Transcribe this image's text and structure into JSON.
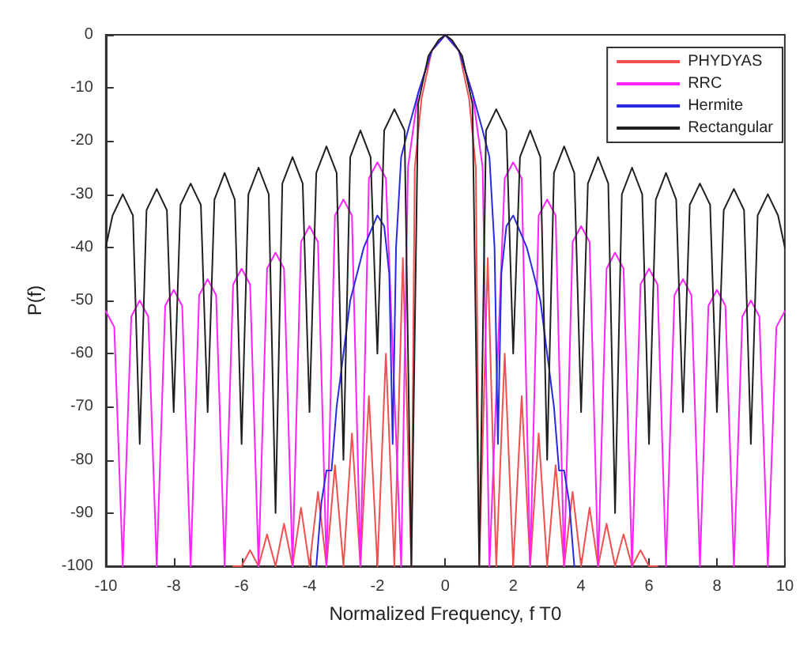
{
  "chart_data": {
    "type": "line",
    "xlabel": "Normalized Frequency, f T0",
    "ylabel": "P(f)",
    "xlim": [
      -10,
      10
    ],
    "xticks": [
      -10,
      -8,
      -6,
      -4,
      -2,
      0,
      2,
      4,
      6,
      8,
      10
    ],
    "ylim": [
      -100,
      0
    ],
    "yticks": [
      -100,
      -90,
      -80,
      -70,
      -60,
      -50,
      -40,
      -30,
      -20,
      -10,
      0
    ],
    "grid": false,
    "legend": "top right",
    "marker": "none",
    "line_style": "solid",
    "series": [
      {
        "name": "PHYDYAS",
        "color": "#f05050",
        "x": [
          -6.25,
          -6,
          -5.75,
          -5.5,
          -5.25,
          -5,
          -4.75,
          -4.5,
          -4.25,
          -4,
          -3.75,
          -3.5,
          -3.25,
          -3,
          -2.75,
          -2.5,
          -2.25,
          -2,
          -1.75,
          -1.5,
          -1.25,
          -1,
          -0.9,
          -0.7,
          -0.4,
          0,
          0.4,
          0.7,
          0.9,
          1,
          1.25,
          1.5,
          1.75,
          2,
          2.25,
          2.5,
          2.75,
          3,
          3.25,
          3.5,
          3.75,
          4,
          4.25,
          4.5,
          4.75,
          5,
          5.25,
          5.5,
          5.75,
          6,
          6.25
        ],
        "values": [
          -100,
          -100,
          -97,
          -100,
          -94,
          -100,
          -92,
          -100,
          -89,
          -100,
          -86,
          -100,
          -81,
          -100,
          -75,
          -100,
          -68,
          -100,
          -60,
          -100,
          -42,
          -100,
          -25,
          -12,
          -3,
          0,
          -3,
          -12,
          -25,
          -100,
          -42,
          -100,
          -60,
          -100,
          -68,
          -100,
          -75,
          -100,
          -81,
          -100,
          -86,
          -100,
          -89,
          -100,
          -92,
          -100,
          -94,
          -100,
          -97,
          -100,
          -100
        ]
      },
      {
        "name": "RRC",
        "color": "#ff22ff",
        "x": [
          -10,
          -9.75,
          -9.5,
          -9.25,
          -9,
          -8.75,
          -8.5,
          -8.25,
          -8,
          -7.75,
          -7.5,
          -7.25,
          -7,
          -6.75,
          -6.5,
          -6.25,
          -6,
          -5.75,
          -5.5,
          -5.25,
          -5,
          -4.75,
          -4.5,
          -4.25,
          -4,
          -3.75,
          -3.5,
          -3.25,
          -3,
          -2.75,
          -2.5,
          -2.25,
          -2,
          -1.75,
          -1.3,
          -1.1,
          -0.8,
          -0.4,
          0,
          0.4,
          0.8,
          1.1,
          1.3,
          1.75,
          2,
          2.25,
          2.5,
          2.75,
          3,
          3.25,
          3.5,
          3.75,
          4,
          4.25,
          4.5,
          4.75,
          5,
          5.25,
          5.5,
          5.75,
          6,
          6.25,
          6.5,
          6.75,
          7,
          7.25,
          7.5,
          7.75,
          8,
          8.25,
          8.5,
          8.75,
          9,
          9.25,
          9.5,
          9.75,
          10
        ],
        "values": [
          -52,
          -55,
          -100,
          -53,
          -50,
          -53,
          -100,
          -51,
          -48,
          -51,
          -100,
          -49,
          -46,
          -49,
          -100,
          -47,
          -44,
          -47,
          -100,
          -44,
          -41,
          -44,
          -100,
          -39,
          -36,
          -39,
          -100,
          -34,
          -31,
          -34,
          -100,
          -27,
          -24,
          -27,
          -100,
          -25,
          -11,
          -3,
          0,
          -3,
          -11,
          -25,
          -100,
          -27,
          -24,
          -27,
          -100,
          -34,
          -31,
          -34,
          -100,
          -39,
          -36,
          -39,
          -100,
          -44,
          -41,
          -44,
          -100,
          -47,
          -44,
          -47,
          -100,
          -49,
          -46,
          -49,
          -100,
          -51,
          -48,
          -51,
          -100,
          -53,
          -50,
          -53,
          -100,
          -55,
          -52
        ]
      },
      {
        "name": "Hermite",
        "color": "#2a2ae0",
        "x": [
          -3.8,
          -3.65,
          -3.5,
          -3.35,
          -3.2,
          -2.8,
          -2.4,
          -2,
          -1.8,
          -1.65,
          -1.55,
          -1.45,
          -1.3,
          -1.1,
          -0.8,
          -0.4,
          0,
          0.4,
          0.8,
          1.1,
          1.3,
          1.45,
          1.55,
          1.65,
          1.8,
          2,
          2.4,
          2.8,
          3.2,
          3.35,
          3.5,
          3.65,
          3.8
        ],
        "values": [
          -100,
          -88,
          -82,
          -82,
          -70,
          -50,
          -40,
          -34,
          -36,
          -45,
          -77,
          -40,
          -23,
          -18,
          -11,
          -3,
          0,
          -3,
          -11,
          -18,
          -23,
          -40,
          -77,
          -45,
          -36,
          -34,
          -40,
          -50,
          -70,
          -82,
          -82,
          -88,
          -100
        ]
      },
      {
        "name": "Rectangular",
        "color": "#202020",
        "x": [
          -10,
          -9.8,
          -9.5,
          -9.2,
          -9,
          -8.8,
          -8.5,
          -8.2,
          -8,
          -7.8,
          -7.5,
          -7.2,
          -7,
          -6.8,
          -6.5,
          -6.2,
          -6,
          -5.8,
          -5.5,
          -5.2,
          -5,
          -4.8,
          -4.5,
          -4.2,
          -4,
          -3.8,
          -3.5,
          -3.2,
          -3,
          -2.8,
          -2.5,
          -2.2,
          -2,
          -1.8,
          -1.5,
          -1.2,
          -1,
          -0.8,
          -0.5,
          -0.2,
          0,
          0.2,
          0.5,
          0.8,
          1,
          1.2,
          1.5,
          1.8,
          2,
          2.2,
          2.5,
          2.8,
          3,
          3.2,
          3.5,
          3.8,
          4,
          4.2,
          4.5,
          4.8,
          5,
          5.2,
          5.5,
          5.8,
          6,
          6.2,
          6.5,
          6.8,
          7,
          7.2,
          7.5,
          7.8,
          8,
          8.2,
          8.5,
          8.8,
          9,
          9.2,
          9.5,
          9.8,
          10
        ],
        "values": [
          -40,
          -34,
          -30,
          -34,
          -77,
          -33,
          -29,
          -33,
          -71,
          -32,
          -28,
          -32,
          -71,
          -31,
          -26,
          -31,
          -77,
          -30,
          -25,
          -30,
          -90,
          -28,
          -23,
          -28,
          -71,
          -26,
          -21,
          -26,
          -80,
          -23,
          -18,
          -23,
          -60,
          -18,
          -14,
          -18,
          -100,
          -13,
          -4,
          -1,
          0,
          -1,
          -4,
          -13,
          -100,
          -18,
          -14,
          -18,
          -60,
          -23,
          -18,
          -23,
          -80,
          -26,
          -21,
          -26,
          -71,
          -28,
          -23,
          -28,
          -90,
          -30,
          -25,
          -30,
          -77,
          -31,
          -26,
          -31,
          -71,
          -32,
          -28,
          -32,
          -71,
          -33,
          -29,
          -33,
          -77,
          -34,
          -30,
          -34,
          -40
        ]
      }
    ]
  }
}
